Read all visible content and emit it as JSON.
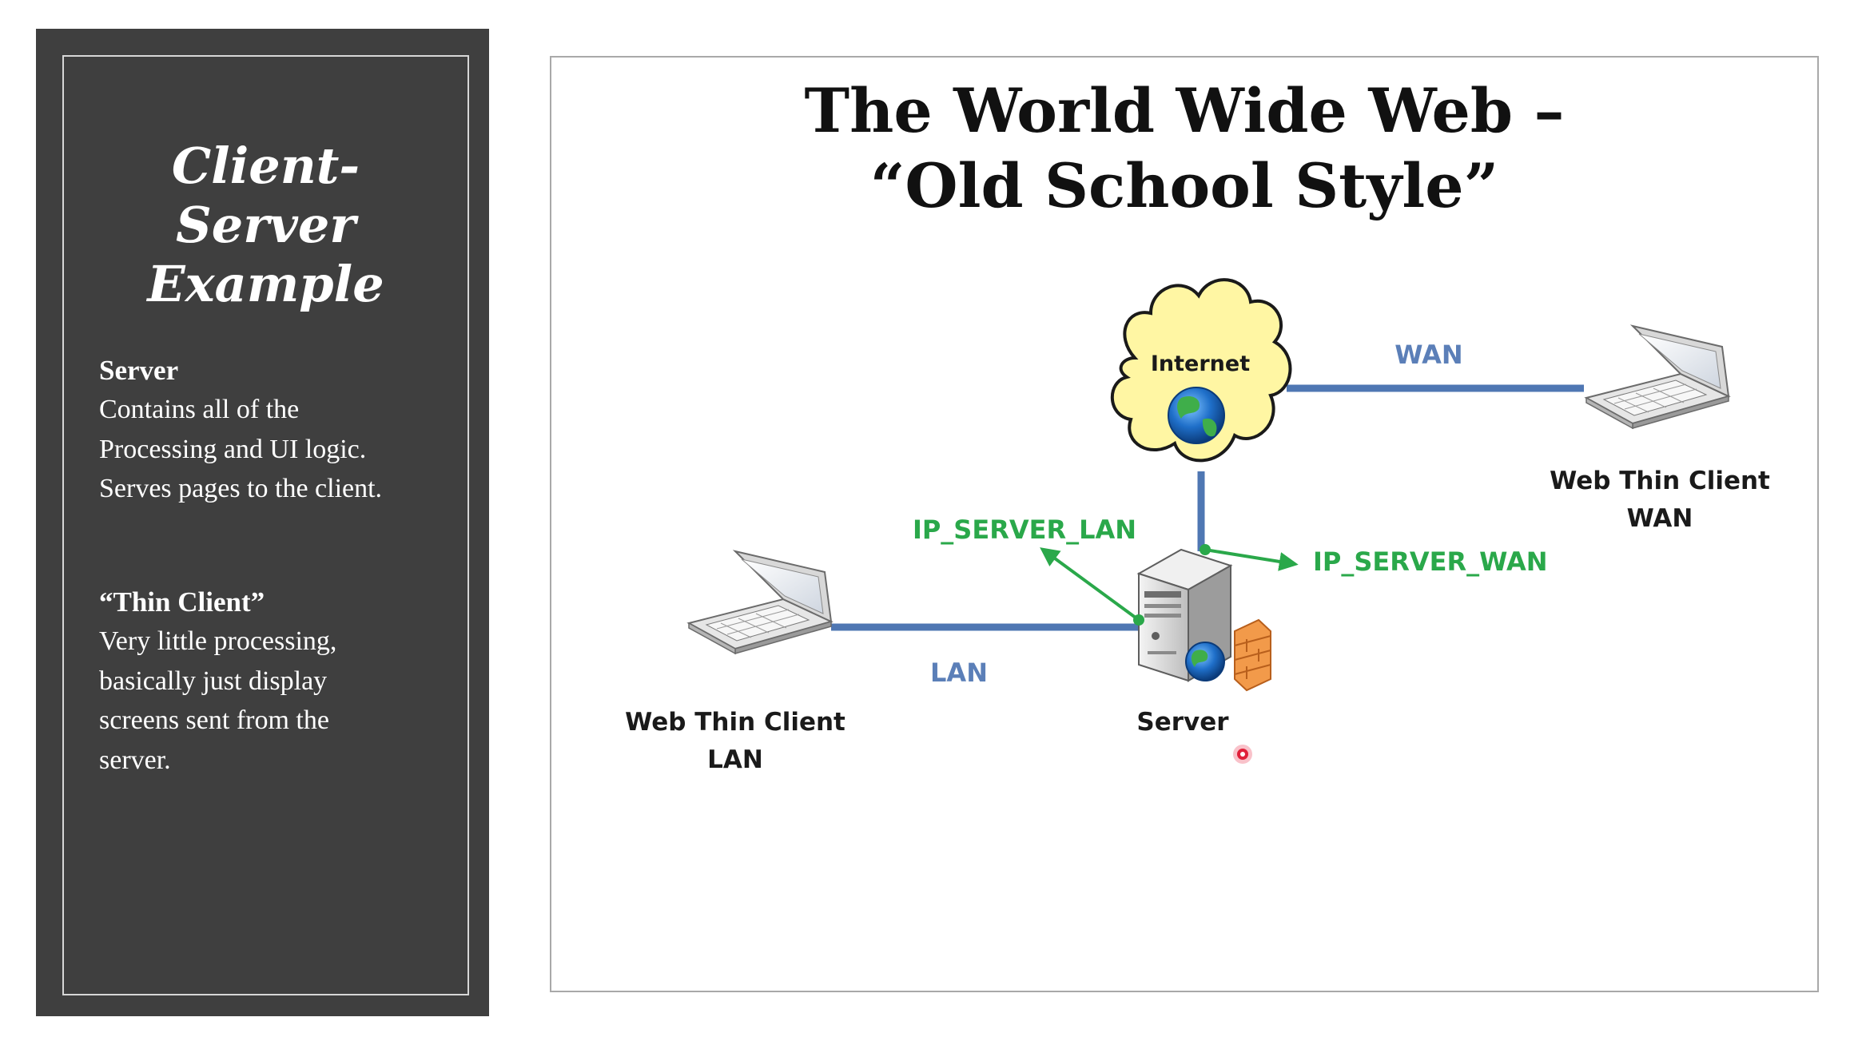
{
  "sidebar": {
    "title_lines": [
      "Client-",
      "Server",
      "Example"
    ],
    "sections": [
      {
        "heading": "Server",
        "body_lines": [
          "Contains all of the",
          "Processing and UI logic.",
          "Serves pages to the client."
        ]
      },
      {
        "heading": "“Thin Client”",
        "body_lines": [
          "Very little processing,",
          "basically just display",
          "screens sent from the",
          "server."
        ]
      }
    ]
  },
  "slide": {
    "title_lines": [
      "The World Wide Web –",
      "“Old School Style”"
    ]
  },
  "diagram": {
    "nodes": {
      "internet": {
        "label": "Internet",
        "icon": "cloud-globe-icon"
      },
      "server": {
        "label": "Server",
        "icon": "server-icon"
      },
      "client_lan": {
        "label_lines": [
          "Web Thin Client",
          "LAN"
        ],
        "icon": "laptop-icon"
      },
      "client_wan": {
        "label_lines": [
          "Web Thin Client",
          "WAN"
        ],
        "icon": "laptop-icon"
      }
    },
    "links": {
      "wan": "WAN",
      "lan": "LAN"
    },
    "ip_labels": {
      "server_lan": "IP_SERVER_LAN",
      "server_wan": "IP_SERVER_WAN"
    },
    "colors": {
      "link": "#4f77b3",
      "ip": "#2aa84a",
      "cloud": "#fff6a3",
      "cursor": "#e0203a"
    }
  }
}
